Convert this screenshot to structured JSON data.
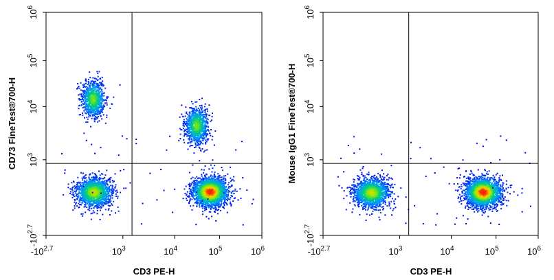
{
  "chart_data": [
    {
      "type": "scatter",
      "title": "",
      "xlabel": "CD3 PE-H",
      "ylabel": "CD73  FineTest®700-H",
      "x_scale": "biexponential",
      "y_scale": "biexponential",
      "xlim": [
        "-10^2.7",
        "10^6"
      ],
      "ylim": [
        "-10^2.7",
        "10^6"
      ],
      "x_ticks": [
        {
          "base": "-10",
          "exp": "2.7"
        },
        {
          "base": "10",
          "exp": "3"
        },
        {
          "base": "10",
          "exp": "4"
        },
        {
          "base": "10",
          "exp": "5"
        },
        {
          "base": "10",
          "exp": "6"
        }
      ],
      "y_ticks": [
        {
          "base": "-10",
          "exp": "2.7"
        },
        {
          "base": "10",
          "exp": "3"
        },
        {
          "base": "10",
          "exp": "4"
        },
        {
          "base": "10",
          "exp": "5"
        },
        {
          "base": "10",
          "exp": "6"
        }
      ],
      "quadrant_gates": {
        "x": 1500,
        "y": 900
      },
      "populations": [
        {
          "x": 180,
          "y": 15000,
          "density": "medium"
        },
        {
          "x": 30000,
          "y": 4500,
          "density": "medium"
        },
        {
          "x": 200,
          "y": 120,
          "density": "high"
        },
        {
          "x": 60000,
          "y": 130,
          "density": "very-high"
        }
      ],
      "grid": false,
      "colormap": "density (blue-green-yellow-red)"
    },
    {
      "type": "scatter",
      "title": "",
      "xlabel": "CD3 PE-H",
      "ylabel": "Mouse IgG1 FineTest®700-H",
      "x_scale": "biexponential",
      "y_scale": "biexponential",
      "xlim": [
        "-10^2.7",
        "10^6"
      ],
      "ylim": [
        "-10^2.7",
        "10^6"
      ],
      "x_ticks": [
        {
          "base": "-10",
          "exp": "2.7"
        },
        {
          "base": "10",
          "exp": "3"
        },
        {
          "base": "10",
          "exp": "4"
        },
        {
          "base": "10",
          "exp": "5"
        },
        {
          "base": "10",
          "exp": "6"
        }
      ],
      "y_ticks": [
        {
          "base": "-10",
          "exp": "2.7"
        },
        {
          "base": "10",
          "exp": "3"
        },
        {
          "base": "10",
          "exp": "4"
        },
        {
          "base": "10",
          "exp": "5"
        },
        {
          "base": "10",
          "exp": "6"
        }
      ],
      "quadrant_gates": {
        "x": 1500,
        "y": 900
      },
      "populations": [
        {
          "x": 220,
          "y": 110,
          "density": "high"
        },
        {
          "x": 50000,
          "y": 120,
          "density": "very-high"
        }
      ],
      "grid": false,
      "colormap": "density (blue-green-yellow-red)"
    }
  ]
}
